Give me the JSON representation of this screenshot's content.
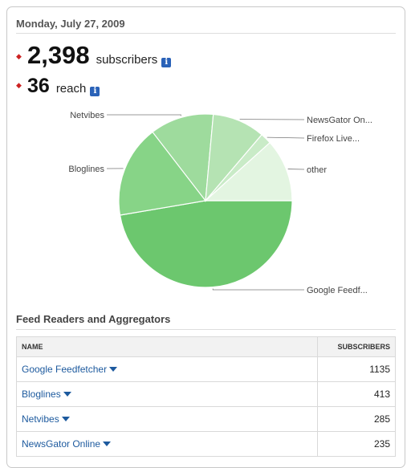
{
  "header": {
    "date": "Monday, July 27, 2009"
  },
  "stats": [
    {
      "value": "2,398",
      "label": "subscribers"
    },
    {
      "value": "36",
      "label": "reach"
    }
  ],
  "chart_data": {
    "type": "pie",
    "labels": [
      "Google Feedf...",
      "Bloglines",
      "Netvibes",
      "NewsGator On...",
      "Firefox Live...",
      "other"
    ],
    "values": [
      1135,
      413,
      285,
      235,
      50,
      280
    ],
    "colors": [
      "#6cc76e",
      "#87d487",
      "#9edb9d",
      "#b5e3b3",
      "#c9ebc7",
      "#e3f5e1"
    ]
  },
  "section": {
    "title": "Feed Readers and Aggregators"
  },
  "table": {
    "headers": {
      "name": "NAME",
      "subscribers": "SUBSCRIBERS"
    },
    "rows": [
      {
        "name": "Google Feedfetcher",
        "subscribers": "1135"
      },
      {
        "name": "Bloglines",
        "subscribers": "413"
      },
      {
        "name": "Netvibes",
        "subscribers": "285"
      },
      {
        "name": "NewsGator Online",
        "subscribers": "235"
      }
    ]
  },
  "icons": {
    "info": "info-icon",
    "bullet": "diamond-bullet-icon",
    "dropdown": "caret-down-icon"
  }
}
